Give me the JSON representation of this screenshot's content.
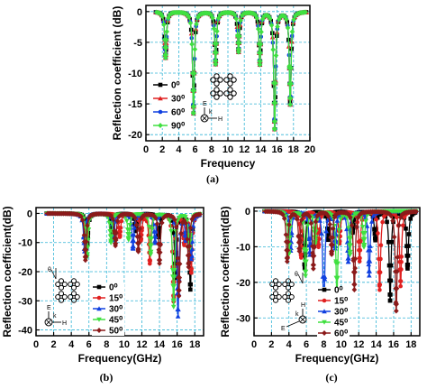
{
  "chart_data": [
    {
      "id": "a",
      "type": "line",
      "caption": "(a)",
      "xlabel": "Frequency",
      "ylabel": "Reflection coefficient (dB)",
      "xlim": [
        0,
        20
      ],
      "ylim": [
        -21,
        1
      ],
      "xticks": [
        0,
        2,
        4,
        6,
        8,
        10,
        12,
        14,
        16,
        18,
        20
      ],
      "yticks": [
        0,
        -5,
        -10,
        -15,
        -20
      ],
      "grid": true,
      "legend": "bottom-left",
      "series": [
        {
          "name": "0⁰",
          "color": "#000000",
          "marker": "square",
          "dips": [
            [
              2.4,
              -7.5
            ],
            [
              5.8,
              -16.5
            ],
            [
              8.5,
              -8.5
            ],
            [
              11.3,
              -6.5
            ],
            [
              13.9,
              -8.5
            ],
            [
              15.7,
              -19
            ],
            [
              17.6,
              -15
            ]
          ]
        },
        {
          "name": "30⁰",
          "color": "#e02020",
          "marker": "triangle",
          "dips": [
            [
              2.4,
              -7.5
            ],
            [
              5.8,
              -16.5
            ],
            [
              8.5,
              -8.5
            ],
            [
              11.3,
              -6.5
            ],
            [
              13.9,
              -8.5
            ],
            [
              15.7,
              -19
            ],
            [
              17.6,
              -15
            ]
          ]
        },
        {
          "name": "60⁰",
          "color": "#1040e0",
          "marker": "circle",
          "dips": [
            [
              2.4,
              -7.5
            ],
            [
              5.8,
              -16.5
            ],
            [
              8.5,
              -8.5
            ],
            [
              11.3,
              -6.5
            ],
            [
              13.9,
              -8.5
            ],
            [
              15.7,
              -19
            ],
            [
              17.6,
              -15
            ]
          ]
        },
        {
          "name": "90⁰",
          "color": "#40e040",
          "marker": "diamond",
          "dips": [
            [
              2.4,
              -7.5
            ],
            [
              5.8,
              -16.5
            ],
            [
              8.5,
              -8.5
            ],
            [
              11.3,
              -6.5
            ],
            [
              13.9,
              -8.5
            ],
            [
              15.7,
              -19
            ],
            [
              17.6,
              -15
            ]
          ]
        }
      ]
    },
    {
      "id": "b",
      "type": "line",
      "caption": "(b)",
      "xlabel": "Frequency(GHz)",
      "ylabel": "Reflection coefficient(dB)",
      "xlim": [
        0,
        19
      ],
      "ylim": [
        -42,
        2
      ],
      "xticks": [
        0,
        2,
        4,
        6,
        8,
        10,
        12,
        14,
        16,
        18
      ],
      "yticks": [
        0,
        -10,
        -20,
        -30,
        -40
      ],
      "grid": true,
      "legend": "middle",
      "series": [
        {
          "name": "0⁰",
          "color": "#000000",
          "marker": "square",
          "dips": [
            [
              5.8,
              -11
            ],
            [
              8.6,
              -7
            ],
            [
              11.3,
              -6
            ],
            [
              13.9,
              -8
            ],
            [
              15.8,
              -22
            ],
            [
              17.5,
              -26
            ]
          ]
        },
        {
          "name": "15⁰",
          "color": "#e02020",
          "marker": "circle",
          "dips": [
            [
              5.7,
              -12
            ],
            [
              9.5,
              -8
            ],
            [
              11.9,
              -9
            ],
            [
              12.9,
              -17
            ],
            [
              15.6,
              -30
            ],
            [
              16.8,
              -10
            ],
            [
              17.6,
              -20
            ]
          ]
        },
        {
          "name": "30⁰",
          "color": "#1040e0",
          "marker": "triangle",
          "dips": [
            [
              5.5,
              -13
            ],
            [
              8.8,
              -9
            ],
            [
              11.0,
              -12
            ],
            [
              13.5,
              -10
            ],
            [
              16.1,
              -35
            ],
            [
              17.0,
              -8
            ],
            [
              17.6,
              -15
            ]
          ]
        },
        {
          "name": "45⁰",
          "color": "#40e040",
          "marker": "triangle-down",
          "dips": [
            [
              5.8,
              -15
            ],
            [
              8.5,
              -10
            ],
            [
              10.5,
              -9
            ],
            [
              13.0,
              -14
            ],
            [
              15.6,
              -32
            ],
            [
              17.4,
              -12
            ]
          ]
        },
        {
          "name": "50⁰",
          "color": "#8b1a1a",
          "marker": "diamond",
          "dips": [
            [
              5.6,
              -16
            ],
            [
              9.0,
              -11
            ],
            [
              11.6,
              -13
            ],
            [
              14.0,
              -17
            ],
            [
              16.2,
              -28
            ],
            [
              17.3,
              -18
            ]
          ]
        }
      ]
    },
    {
      "id": "c",
      "type": "line",
      "caption": "(c)",
      "xlabel": "Frequency(GHz)",
      "ylabel": "Reflection coefficient(dB)",
      "xlim": [
        0,
        19
      ],
      "ylim": [
        -35,
        1
      ],
      "xticks": [
        0,
        2,
        4,
        6,
        8,
        10,
        12,
        14,
        16,
        18
      ],
      "yticks": [
        0,
        -10,
        -20,
        -30
      ],
      "grid": true,
      "legend": "bottom-right",
      "series": [
        {
          "name": "0⁰",
          "color": "#000000",
          "marker": "square",
          "dips": [
            [
              5.8,
              -16
            ],
            [
              8.5,
              -8
            ],
            [
              11.3,
              -6
            ],
            [
              13.9,
              -8
            ],
            [
              15.6,
              -25
            ],
            [
              17.6,
              -16
            ]
          ]
        },
        {
          "name": "15⁰",
          "color": "#e02020",
          "marker": "circle",
          "dips": [
            [
              5.4,
              -13
            ],
            [
              7.4,
              -10
            ],
            [
              9.8,
              -9
            ],
            [
              12.1,
              -14
            ],
            [
              14.4,
              -22
            ],
            [
              16.8,
              -21
            ]
          ]
        },
        {
          "name": "30⁰",
          "color": "#1040e0",
          "marker": "triangle",
          "dips": [
            [
              4.2,
              -11
            ],
            [
              6.4,
              -12
            ],
            [
              8.0,
              -30
            ],
            [
              9.3,
              -10
            ],
            [
              10.8,
              -14
            ],
            [
              13.2,
              -18
            ]
          ]
        },
        {
          "name": "45⁰",
          "color": "#40e040",
          "marker": "triangle-down",
          "dips": [
            [
              4.0,
              -12
            ],
            [
              5.9,
              -18
            ],
            [
              7.0,
              -9
            ],
            [
              9.5,
              -24
            ],
            [
              11.0,
              -12
            ],
            [
              12.6,
              -10
            ]
          ]
        },
        {
          "name": "60⁰",
          "color": "#8b1a1a",
          "marker": "diamond",
          "dips": [
            [
              3.8,
              -14
            ],
            [
              5.2,
              -11
            ],
            [
              6.8,
              -16
            ],
            [
              8.9,
              -12
            ],
            [
              11.5,
              -22
            ],
            [
              16.3,
              -28
            ]
          ]
        }
      ]
    }
  ],
  "insets": {
    "a": {
      "e_label": "E",
      "k_label": "k",
      "h_label": "H"
    },
    "b": {
      "e_label": "E",
      "k_label": "k",
      "h_label": "H",
      "theta_label": "θ"
    },
    "c": {
      "e_label": "E",
      "k_label": "k",
      "h_label": "H",
      "theta_label": "θ"
    }
  }
}
